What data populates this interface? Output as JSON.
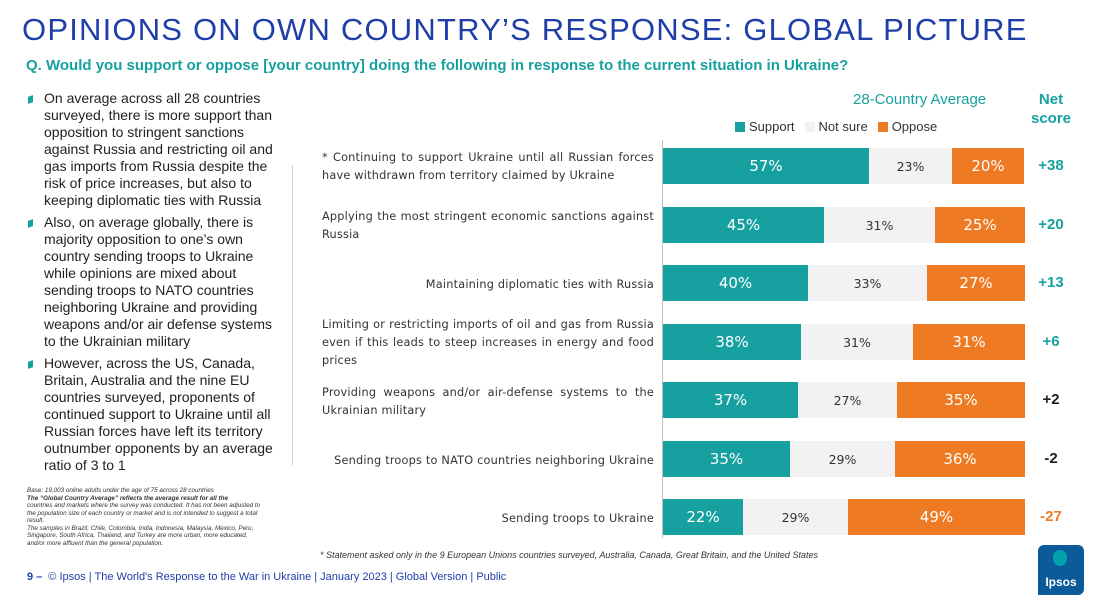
{
  "title": "OPINIONS ON OWN COUNTRY’S RESPONSE: GLOBAL PICTURE",
  "question": "Q. Would you support or oppose [your country] doing the following in response to the current situation in Ukraine?",
  "bullets": [
    "On average across all 28 countries surveyed, there is more support than opposition to stringent sanctions against Russia and restricting oil and gas imports from Russia despite the risk of price increases, but also to keeping diplomatic ties with Russia",
    "Also, on average globally, there is majority opposition to one’s own country sending troops to Ukraine while opinions are mixed about sending troops to NATO countries neighboring Ukraine and providing weapons and/or air defense systems to the Ukrainian military",
    "However, across the US, Canada, Britain, Australia and the nine EU countries surveyed, proponents of continued support to Ukraine until all Russian forces have left its territory outnumber opponents by an average ratio of 3 to 1"
  ],
  "smallprint": {
    "base": "Base: 19,003 online adults under the age of 75 across 28 countries",
    "gca_bold": "The “Global Country Average” reflects the average result for all the",
    "gca_rest": "countries and markets where the survey was conducted. It has not been adjusted to the population size of each country or market and is not intended to suggest a total result.",
    "samples": "The samples in Brazil, Chile, Colombia, India, Indonesia, Malaysia, Mexico, Peru, Singapore, South Africa, Thailand, and Turkey are more urban, more educated, and/or more affluent than the general population."
  },
  "avg_label": "28-Country Average",
  "net_header": "Net score",
  "colors": {
    "support": "#17a0a0",
    "notsure": "#f2f2f2",
    "oppose": "#ee7a23",
    "accent": "#1f3ea8",
    "net_positive": "#17a0a0",
    "net_neutral": "#1f1f1f",
    "net_negative": "#ee7a23"
  },
  "chart_data": {
    "type": "bar",
    "orientation": "horizontal-stacked-100",
    "legend": [
      "Support",
      "Not sure",
      "Oppose"
    ],
    "categories": [
      "* Continuing to support Ukraine until all Russian forces have withdrawn from territory claimed by Ukraine",
      "Applying the most stringent economic sanctions against Russia",
      "Maintaining diplomatic ties with Russia",
      "Limiting or restricting imports of oil and gas from Russia even if this leads to steep increases in energy and food prices",
      "Providing weapons and/or air-defense systems to the Ukrainian military",
      "Sending troops to NATO countries neighboring Ukraine",
      "Sending troops to Ukraine"
    ],
    "series": [
      {
        "name": "Support",
        "values": [
          57,
          45,
          40,
          38,
          37,
          35,
          22
        ]
      },
      {
        "name": "Not sure",
        "values": [
          23,
          31,
          33,
          31,
          27,
          29,
          29
        ]
      },
      {
        "name": "Oppose",
        "values": [
          20,
          25,
          27,
          31,
          35,
          36,
          49
        ]
      }
    ],
    "net_scores": [
      "+38",
      "+20",
      "+13",
      "+6",
      "+2",
      "-2",
      "-27"
    ],
    "unit": "%"
  },
  "footnote": "* Statement asked only in the 9 European Unions countries surveyed, Australia, Canada, Great Britain, and the United States",
  "footer": {
    "page": "9 –",
    "text": "© Ipsos | The World's Response to the War in Ukraine | January 2023 | Global Version | Public"
  },
  "logo_text": "Ipsos"
}
